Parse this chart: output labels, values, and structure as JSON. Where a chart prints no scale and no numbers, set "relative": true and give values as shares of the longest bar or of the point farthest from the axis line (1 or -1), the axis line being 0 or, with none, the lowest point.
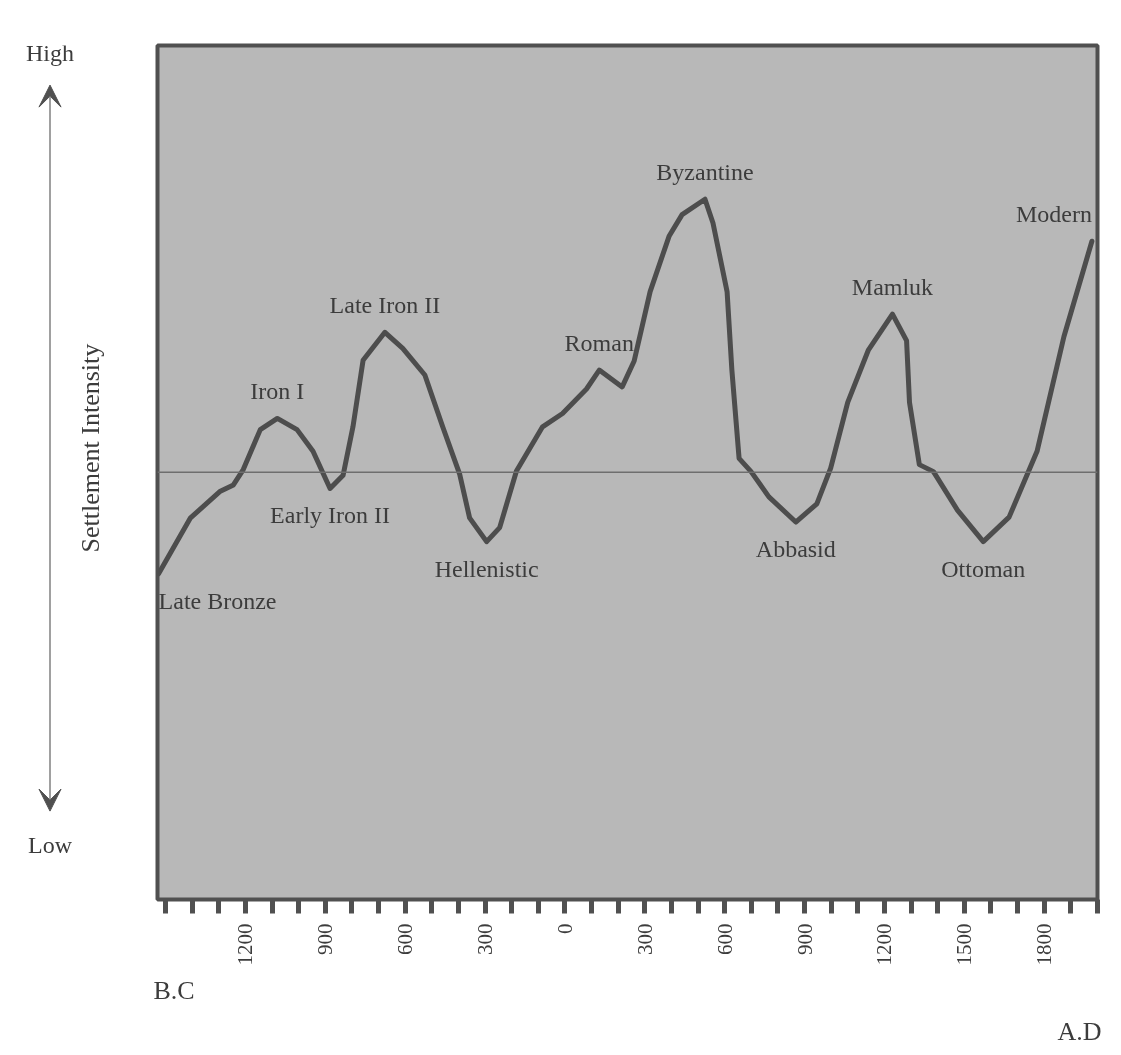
{
  "chart_data": {
    "type": "line",
    "relative": true,
    "ylabel": "Settlement Intensity",
    "xlim": [
      -1530,
      2000
    ],
    "xticks": [
      {
        "value": -1500,
        "label": null
      },
      {
        "value": -1400,
        "label": null
      },
      {
        "value": -1300,
        "label": null
      },
      {
        "value": -1200,
        "label": "1200"
      },
      {
        "value": -1100,
        "label": null
      },
      {
        "value": -1000,
        "label": null
      },
      {
        "value": -900,
        "label": "900"
      },
      {
        "value": -800,
        "label": null
      },
      {
        "value": -700,
        "label": null
      },
      {
        "value": -600,
        "label": "600"
      },
      {
        "value": -500,
        "label": null
      },
      {
        "value": -400,
        "label": null
      },
      {
        "value": -300,
        "label": "300"
      },
      {
        "value": -200,
        "label": null
      },
      {
        "value": -100,
        "label": null
      },
      0,
      {
        "value": 100,
        "label": null
      },
      {
        "value": 200,
        "label": null
      },
      300,
      {
        "value": 400,
        "label": null
      },
      {
        "value": 500,
        "label": null
      },
      600,
      {
        "value": 700,
        "label": null
      },
      {
        "value": 800,
        "label": null
      },
      900,
      {
        "value": 1000,
        "label": null
      },
      {
        "value": 1100,
        "label": null
      },
      1200,
      {
        "value": 1300,
        "label": null
      },
      {
        "value": 1400,
        "label": null
      },
      1500,
      {
        "value": 1600,
        "label": null
      },
      {
        "value": 1700,
        "label": null
      },
      1800,
      {
        "value": 1900,
        "label": null
      },
      {
        "value": 2000,
        "label": null
      }
    ],
    "series": [
      {
        "color": "#4d4d4d",
        "x": [
          -1526,
          -1406,
          -1294,
          -1245,
          -1208,
          -1144,
          -1080,
          -1006,
          -946,
          -882,
          -833,
          -796,
          -758,
          -676,
          -609,
          -526,
          -459,
          -395,
          -358,
          -294,
          -245,
          -182,
          -84,
          -9,
          81,
          129,
          215,
          260,
          320,
          391,
          440,
          526,
          556,
          609,
          627,
          654,
          699,
          766,
          867,
          946,
          998,
          1062,
          1140,
          1230,
          1283,
          1294,
          1331,
          1384,
          1474,
          1571,
          1668,
          1773,
          1874,
          1979
        ],
        "values": [
          0.465,
          0.545,
          0.583,
          0.592,
          0.614,
          0.671,
          0.687,
          0.671,
          0.64,
          0.587,
          0.606,
          0.675,
          0.77,
          0.81,
          0.787,
          0.749,
          0.675,
          0.607,
          0.545,
          0.511,
          0.531,
          0.612,
          0.675,
          0.694,
          0.729,
          0.756,
          0.732,
          0.769,
          0.868,
          0.947,
          0.978,
          1,
          0.966,
          0.868,
          0.756,
          0.63,
          0.611,
          0.575,
          0.539,
          0.565,
          0.616,
          0.71,
          0.785,
          0.836,
          0.798,
          0.71,
          0.621,
          0.611,
          0.556,
          0.511,
          0.546,
          0.64,
          0.804,
          0.94
        ]
      }
    ],
    "ref_lines": [
      {
        "axis": "y",
        "value": 0.61,
        "color": "#6e6e6e"
      }
    ],
    "annotations": [
      "High",
      "Low",
      "B.C",
      "A.D",
      {
        "text": "Late Bronze",
        "x": -1526,
        "y": 0.465
      },
      {
        "text": "Iron I",
        "x": -1080,
        "y": 0.687
      },
      {
        "text": "Early Iron II",
        "x": -882,
        "y": 0.587
      },
      {
        "text": "Late Iron II",
        "x": -676,
        "y": 0.81
      },
      {
        "text": "Hellenistic",
        "x": -294,
        "y": 0.511
      },
      {
        "text": "Roman",
        "x": 129,
        "y": 0.756
      },
      {
        "text": "Byzantine",
        "x": 526,
        "y": 1
      },
      {
        "text": "Abbasid",
        "x": 867,
        "y": 0.539
      },
      {
        "text": "Mamluk",
        "x": 1230,
        "y": 0.836
      },
      {
        "text": "Ottoman",
        "x": 1571,
        "y": 0.511
      },
      {
        "text": "Modern",
        "x": 1979,
        "y": 0.94
      }
    ],
    "marker": "none",
    "line_style": "solid",
    "grid": false
  }
}
